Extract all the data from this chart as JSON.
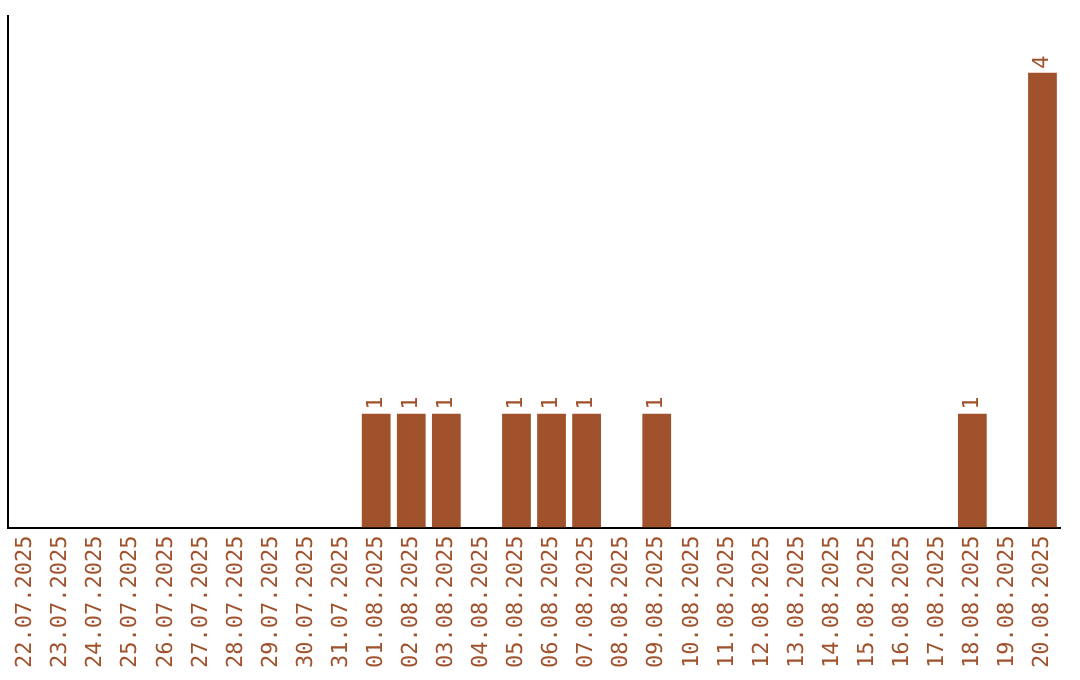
{
  "chart_data": {
    "type": "bar",
    "categories": [
      "22.07.2025",
      "23.07.2025",
      "24.07.2025",
      "25.07.2025",
      "26.07.2025",
      "27.07.2025",
      "28.07.2025",
      "29.07.2025",
      "30.07.2025",
      "31.07.2025",
      "01.08.2025",
      "02.08.2025",
      "03.08.2025",
      "04.08.2025",
      "05.08.2025",
      "06.08.2025",
      "07.08.2025",
      "08.08.2025",
      "09.08.2025",
      "10.08.2025",
      "11.08.2025",
      "12.08.2025",
      "13.08.2025",
      "14.08.2025",
      "15.08.2025",
      "16.08.2025",
      "17.08.2025",
      "18.08.2025",
      "19.08.2025",
      "20.08.2025"
    ],
    "values": [
      0,
      0,
      0,
      0,
      0,
      0,
      0,
      0,
      0,
      0,
      1,
      1,
      1,
      0,
      1,
      1,
      1,
      0,
      1,
      0,
      0,
      0,
      0,
      0,
      0,
      0,
      0,
      1,
      0,
      4
    ],
    "value_labels": [
      null,
      null,
      null,
      null,
      null,
      null,
      null,
      null,
      null,
      null,
      "1",
      "1",
      "1",
      null,
      "1",
      "1",
      "1",
      null,
      "1",
      null,
      null,
      null,
      null,
      null,
      null,
      null,
      null,
      "1",
      null,
      "4"
    ],
    "color": "#a0522d",
    "grid": false,
    "legend": false,
    "tick_labels": "x"
  }
}
